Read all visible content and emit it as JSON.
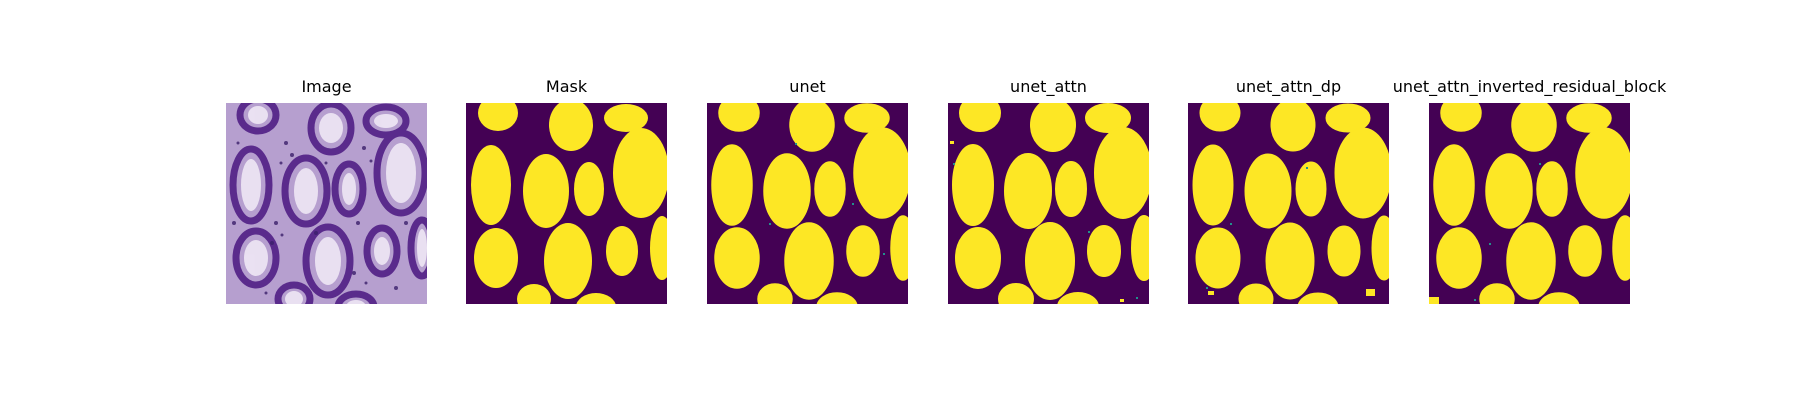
{
  "panels": [
    {
      "id": "image",
      "title": "Image"
    },
    {
      "id": "mask",
      "title": "Mask"
    },
    {
      "id": "unet",
      "title": "unet"
    },
    {
      "id": "unet_attn",
      "title": "unet_attn"
    },
    {
      "id": "unet_attn_dp",
      "title": "unet_attn_dp"
    },
    {
      "id": "unet_attn_inverted_residual_block",
      "title": "unet_attn_inverted_residual_block"
    }
  ],
  "colors": {
    "mask_background": "#440154",
    "mask_foreground": "#fde725",
    "edge_noise": "#21918c",
    "tissue_base": "#d8c9e4",
    "gland_ring": "#5b2d8e",
    "gland_lumen": "#f2eef7",
    "nuclei": "#3b1f6b"
  }
}
